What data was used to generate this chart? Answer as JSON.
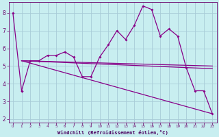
{
  "xlabel": "Windchill (Refroidissement éolien,°C)",
  "bg_color": "#c8eef0",
  "grid_color": "#a8ccd8",
  "line_color": "#880088",
  "xlim": [
    -0.5,
    23.5
  ],
  "ylim": [
    1.8,
    8.6
  ],
  "yticks": [
    2,
    3,
    4,
    5,
    6,
    7,
    8
  ],
  "xticks": [
    0,
    1,
    2,
    3,
    4,
    5,
    6,
    7,
    8,
    9,
    10,
    11,
    12,
    13,
    14,
    15,
    16,
    17,
    18,
    19,
    20,
    21,
    22,
    23
  ],
  "series1_x": [
    0,
    1
  ],
  "series1_y": [
    8.0,
    3.6
  ],
  "series2_x": [
    1,
    2,
    3,
    4,
    5,
    6,
    7,
    8,
    9,
    10,
    11,
    12,
    13,
    14,
    15,
    16,
    17,
    18,
    19,
    20,
    21,
    22,
    23
  ],
  "series2_y": [
    3.6,
    5.3,
    5.3,
    5.6,
    5.6,
    5.8,
    5.5,
    4.4,
    4.4,
    5.5,
    6.2,
    7.0,
    6.5,
    7.3,
    8.4,
    8.2,
    6.7,
    7.1,
    6.7,
    4.9,
    3.6,
    3.6,
    2.3
  ],
  "line3_x": [
    1,
    23
  ],
  "line3_y": [
    5.3,
    5.0
  ],
  "line4_x": [
    1,
    23
  ],
  "line4_y": [
    5.3,
    4.85
  ],
  "line5_x": [
    1,
    23
  ],
  "line5_y": [
    5.3,
    2.3
  ],
  "spine_color": "#6a006a",
  "tick_color": "#6a006a",
  "label_color": "#4a0060"
}
